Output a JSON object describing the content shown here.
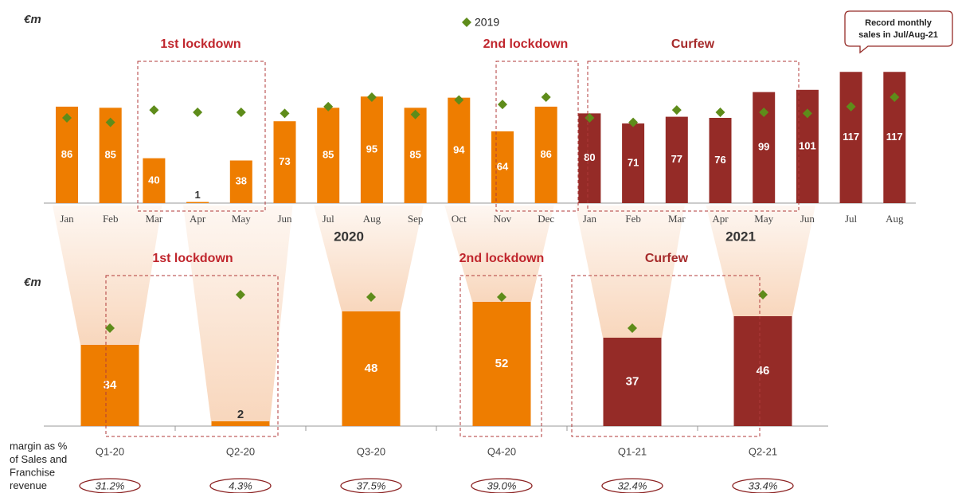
{
  "chart_data": [
    {
      "type": "bar",
      "unit_label": "€m",
      "categories": [
        "Jan",
        "Feb",
        "Mar",
        "Apr",
        "May",
        "Jun",
        "Jul",
        "Aug",
        "Sep",
        "Oct",
        "Nov",
        "Dec",
        "Jan",
        "Feb",
        "Mar",
        "Apr",
        "May",
        "Jun",
        "Jul",
        "Aug"
      ],
      "values": [
        86,
        85,
        40,
        1,
        38,
        73,
        85,
        95,
        85,
        94,
        64,
        86,
        80,
        71,
        77,
        76,
        99,
        101,
        117,
        117
      ],
      "colors": [
        "#ee7d00",
        "#ee7d00",
        "#ee7d00",
        "#ee7d00",
        "#ee7d00",
        "#ee7d00",
        "#ee7d00",
        "#ee7d00",
        "#ee7d00",
        "#ee7d00",
        "#ee7d00",
        "#ee7d00",
        "#952b27",
        "#952b27",
        "#952b27",
        "#952b27",
        "#952b27",
        "#952b27",
        "#952b27",
        "#952b27"
      ],
      "markers": {
        "name": "2019",
        "color": "#5e8c1a",
        "values": [
          76,
          72,
          83,
          81,
          81,
          80,
          86,
          94.5,
          79,
          92,
          88,
          94.5,
          76,
          72,
          83,
          81,
          81,
          80,
          86,
          94.5
        ]
      },
      "ylim": [
        0,
        125
      ],
      "year_labels": [
        "2020",
        "2021"
      ],
      "annotations": [
        "1st lockdown",
        "2nd lockdown",
        "Curfew"
      ],
      "callout": [
        "Record monthly",
        "sales in Jul/Aug-21"
      ]
    },
    {
      "type": "bar",
      "unit_label": "€m",
      "categories": [
        "Q1-20",
        "Q2-20",
        "Q3-20",
        "Q4-20",
        "Q1-21",
        "Q2-21"
      ],
      "values": [
        34,
        2,
        48,
        52,
        37,
        46
      ],
      "colors": [
        "#ee7d00",
        "#ee7d00",
        "#ee7d00",
        "#ee7d00",
        "#952b27",
        "#952b27"
      ],
      "markers": {
        "name": "2019",
        "color": "#5e8c1a",
        "values": [
          41,
          55,
          54,
          54,
          41,
          55
        ]
      },
      "ylim": [
        0,
        60
      ],
      "annotations": [
        "1st lockdown",
        "2nd lockdown",
        "Curfew"
      ],
      "margin_caption": [
        "margin as %",
        "of Sales and",
        "Franchise",
        "revenue"
      ],
      "margin_labels": [
        "31.2%",
        "4.3%",
        "37.5%",
        "39.0%",
        "32.4%",
        "33.4%"
      ]
    }
  ]
}
